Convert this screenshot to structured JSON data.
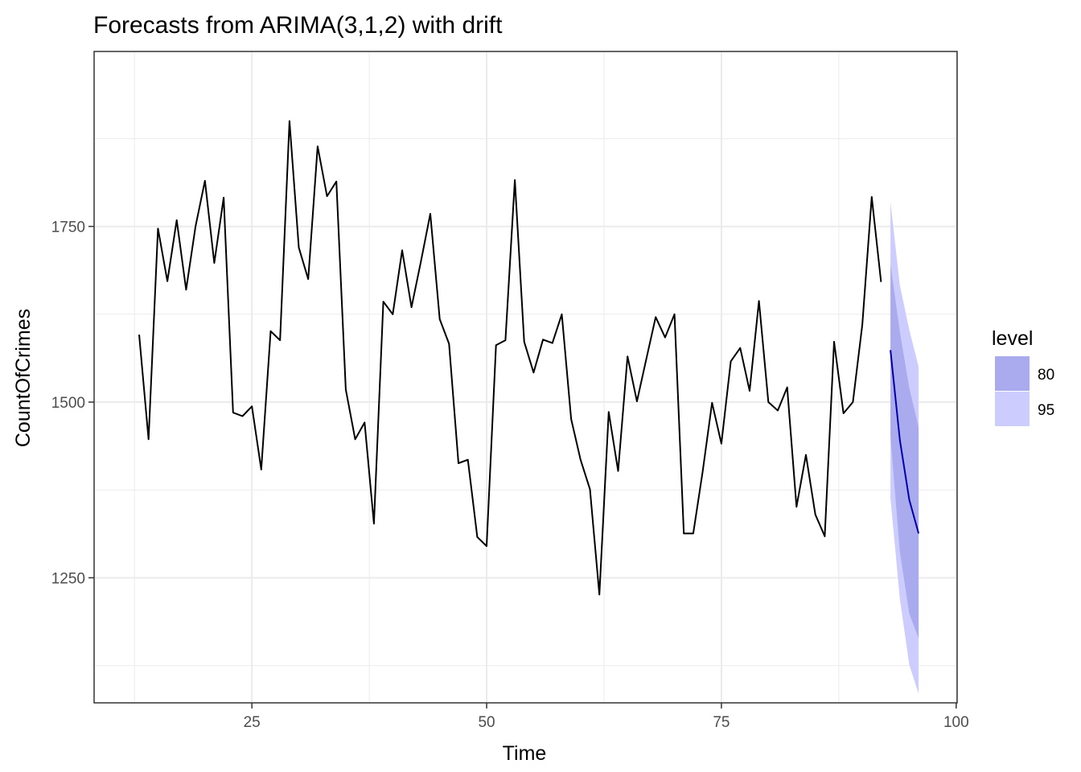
{
  "chart_data": {
    "type": "line",
    "title": "Forecasts from ARIMA(3,1,2) with drift",
    "xlabel": "Time",
    "ylabel": "CountOfCrimes",
    "xlim": [
      8.2,
      100.1
    ],
    "ylim": [
      1072,
      1999
    ],
    "x_ticks": [
      25,
      50,
      75,
      100
    ],
    "x_minor": [
      12.5,
      37.5,
      62.5,
      87.5
    ],
    "y_ticks": [
      1250,
      1500,
      1750
    ],
    "y_minor": [
      1125,
      1375,
      1625,
      1875
    ],
    "grid": true,
    "legend_position": "right",
    "colors": {
      "history": "#000000",
      "forecast": "#0000aa",
      "band80": "#aaaaee",
      "band95": "#ccccff",
      "grid": "#ebebeb",
      "panel_border": "#333333"
    },
    "history": {
      "x": [
        13,
        14,
        15,
        16,
        17,
        18,
        19,
        20,
        21,
        22,
        23,
        24,
        25,
        26,
        27,
        28,
        29,
        30,
        31,
        32,
        33,
        34,
        35,
        36,
        37,
        38,
        39,
        40,
        41,
        42,
        43,
        44,
        45,
        46,
        47,
        48,
        49,
        50,
        51,
        52,
        53,
        54,
        55,
        56,
        57,
        58,
        59,
        60,
        61,
        62,
        63,
        64,
        65,
        66,
        67,
        68,
        69,
        70,
        71,
        72,
        73,
        74,
        75,
        76,
        77,
        78,
        79,
        80,
        81,
        82,
        83,
        84,
        85,
        86,
        87,
        88,
        89,
        90,
        91,
        92
      ],
      "y": [
        1596,
        1447,
        1747,
        1672,
        1759,
        1660,
        1750,
        1815,
        1698,
        1791,
        1485,
        1480,
        1494,
        1404,
        1601,
        1588,
        1900,
        1720,
        1675,
        1864,
        1793,
        1814,
        1518,
        1447,
        1471,
        1327,
        1643,
        1625,
        1716,
        1635,
        1700,
        1768,
        1618,
        1583,
        1413,
        1418,
        1308,
        1295,
        1581,
        1588,
        1816,
        1586,
        1542,
        1589,
        1584,
        1625,
        1476,
        1418,
        1376,
        1226,
        1486,
        1402,
        1565,
        1501,
        1561,
        1621,
        1592,
        1625,
        1313,
        1313,
        1401,
        1499,
        1441,
        1558,
        1577,
        1516,
        1644,
        1500,
        1488,
        1521,
        1351,
        1425,
        1340,
        1309,
        1586,
        1484,
        1500,
        1610,
        1792,
        1671
      ]
    },
    "forecast": {
      "x": [
        93,
        94,
        95,
        96
      ],
      "mean": [
        1574,
        1446,
        1361,
        1313
      ],
      "lo80": [
        1451,
        1287,
        1199,
        1164
      ],
      "hi80": [
        1696,
        1600,
        1520,
        1464
      ],
      "lo95": [
        1363,
        1220,
        1126,
        1085
      ],
      "hi95": [
        1785,
        1666,
        1603,
        1550
      ]
    },
    "legend": {
      "title": "level",
      "items": [
        {
          "label": "80",
          "color": "#aaaaee"
        },
        {
          "label": "95",
          "color": "#ccccff"
        }
      ]
    }
  }
}
